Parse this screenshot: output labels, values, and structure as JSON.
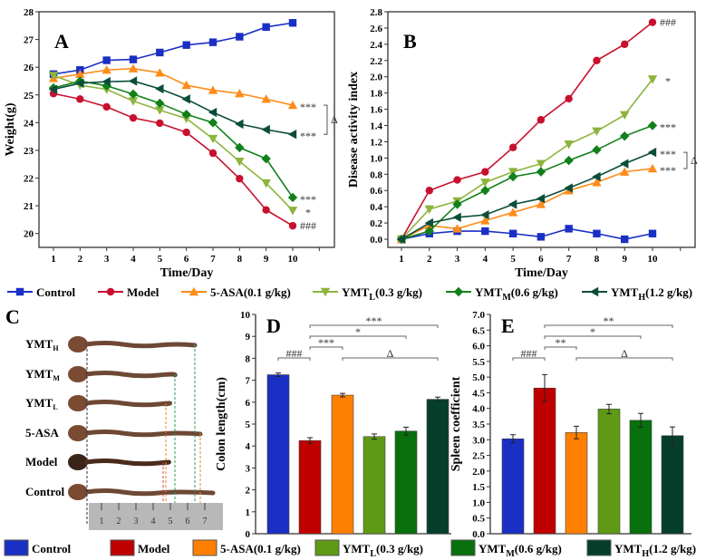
{
  "groups": [
    {
      "main": "Control",
      "sub": "",
      "rest": "",
      "color": "#1a2fc4",
      "line": "#1a2fc4",
      "marker": "square"
    },
    {
      "main": "Model",
      "sub": "",
      "rest": "",
      "color": "#c00000",
      "line": "#c8102e",
      "marker": "circle"
    },
    {
      "main": "5-ASA(0.1 g/kg)",
      "sub": "",
      "rest": "",
      "color": "#ff8000",
      "line": "#ff8c1a",
      "marker": "triangle-up"
    },
    {
      "main": "YMT",
      "sub": "L",
      "rest": "(0.3 g/kg)",
      "color": "#5e9a14",
      "line": "#8db43c",
      "marker": "triangle-down"
    },
    {
      "main": "YMT",
      "sub": "M",
      "rest": "(0.6 g/kg)",
      "color": "#08700c",
      "line": "#12801a",
      "marker": "diamond"
    },
    {
      "main": "YMT",
      "sub": "H",
      "rest": "(1.2 g/kg)",
      "color": "#053f2c",
      "line": "#0b4d3a",
      "marker": "triangle-left"
    }
  ],
  "chart_data": [
    {
      "panel": "A",
      "type": "line",
      "xlabel": "Time/Day",
      "ylabel": "Weight(g)",
      "xlim": [
        1,
        11
      ],
      "ylim": [
        19.5,
        28
      ],
      "xticks": [
        1,
        2,
        3,
        4,
        5,
        6,
        7,
        8,
        9,
        10
      ],
      "yticks": [
        20,
        21,
        22,
        23,
        24,
        25,
        26,
        27,
        28
      ],
      "series": [
        {
          "name": "Control",
          "values": [
            25.75,
            25.9,
            26.25,
            26.28,
            26.53,
            26.8,
            26.9,
            27.1,
            27.45,
            27.6
          ]
        },
        {
          "name": "Model",
          "values": [
            25.05,
            24.85,
            24.57,
            24.17,
            23.98,
            23.65,
            22.9,
            21.98,
            20.85,
            20.28
          ]
        },
        {
          "name": "5-ASA(0.1 g/kg)",
          "values": [
            25.6,
            25.75,
            25.9,
            25.95,
            25.8,
            25.35,
            25.17,
            25.05,
            24.85,
            24.63
          ]
        },
        {
          "name": "YMTL(0.3 g/kg)",
          "values": [
            25.7,
            25.35,
            25.2,
            24.78,
            24.45,
            24.15,
            23.42,
            22.6,
            21.82,
            20.83
          ]
        },
        {
          "name": "YMTM(0.6 g/kg)",
          "values": [
            25.25,
            25.5,
            25.33,
            25.03,
            24.7,
            24.3,
            24.0,
            23.1,
            22.7,
            21.3
          ]
        },
        {
          "name": "YMTH(1.2 g/kg)",
          "values": [
            25.2,
            25.42,
            25.48,
            25.5,
            25.22,
            24.85,
            24.37,
            23.95,
            23.75,
            23.58
          ]
        }
      ],
      "annotations": [
        {
          "series": 0,
          "text": ""
        },
        {
          "series": 1,
          "text": "###"
        },
        {
          "series": 2,
          "text": "***"
        },
        {
          "series": 3,
          "text": "*"
        },
        {
          "series": 4,
          "text": "***"
        },
        {
          "series": 5,
          "text": "***"
        }
      ],
      "bracket": {
        "between": [
          2,
          5
        ],
        "text": "Δ"
      }
    },
    {
      "panel": "B",
      "type": "line",
      "xlabel": "Time/Day",
      "ylabel": "Disease activity index",
      "xlim": [
        1,
        11
      ],
      "ylim": [
        -0.1,
        2.8
      ],
      "xticks": [
        1,
        2,
        3,
        4,
        5,
        6,
        7,
        8,
        9,
        10
      ],
      "yticks": [
        0.0,
        0.2,
        0.4,
        0.6,
        0.8,
        1.0,
        1.2,
        1.4,
        1.6,
        1.8,
        2.0,
        2.2,
        2.4,
        2.6,
        2.8
      ],
      "series": [
        {
          "name": "Control",
          "values": [
            0,
            0.07,
            0.1,
            0.1,
            0.07,
            0.03,
            0.13,
            0.07,
            0,
            0.07
          ]
        },
        {
          "name": "Model",
          "values": [
            0,
            0.6,
            0.73,
            0.83,
            1.13,
            1.47,
            1.73,
            2.2,
            2.4,
            2.67
          ]
        },
        {
          "name": "5-ASA(0.1 g/kg)",
          "values": [
            0,
            0.17,
            0.13,
            0.23,
            0.33,
            0.43,
            0.6,
            0.7,
            0.83,
            0.87
          ]
        },
        {
          "name": "YMTL(0.3 g/kg)",
          "values": [
            0,
            0.37,
            0.47,
            0.7,
            0.83,
            0.93,
            1.17,
            1.33,
            1.53,
            1.97
          ]
        },
        {
          "name": "YMTM(0.6 g/kg)",
          "values": [
            0,
            0.1,
            0.43,
            0.6,
            0.77,
            0.83,
            0.97,
            1.1,
            1.27,
            1.4
          ]
        },
        {
          "name": "YMTH(1.2 g/kg)",
          "values": [
            0,
            0.2,
            0.27,
            0.3,
            0.43,
            0.5,
            0.63,
            0.77,
            0.93,
            1.07
          ]
        }
      ],
      "annotations": [
        {
          "series": 0,
          "text": ""
        },
        {
          "series": 1,
          "text": "###"
        },
        {
          "series": 2,
          "text": "***"
        },
        {
          "series": 3,
          "text": "*"
        },
        {
          "series": 4,
          "text": "***"
        },
        {
          "series": 5,
          "text": "***"
        }
      ],
      "bracket": {
        "between": [
          5,
          2
        ],
        "text": "Δ"
      }
    },
    {
      "panel": "D",
      "type": "bar",
      "ylabel": "Colon length(cm)",
      "ylim": [
        0,
        10
      ],
      "yticks": [
        0,
        1,
        2,
        3,
        4,
        5,
        6,
        7,
        8,
        9,
        10
      ],
      "values": [
        7.25,
        4.25,
        6.32,
        4.43,
        4.68,
        6.13
      ],
      "errors": [
        0.08,
        0.13,
        0.08,
        0.12,
        0.18,
        0.1
      ],
      "comparisons": [
        {
          "from": 0,
          "to": 1,
          "text": "###"
        },
        {
          "from": 1,
          "to": 2,
          "text": "***"
        },
        {
          "from": 1,
          "to": 4,
          "text": "*"
        },
        {
          "from": 1,
          "to": 5,
          "text": "***"
        },
        {
          "from": 2,
          "to": 5,
          "text": "Δ"
        }
      ]
    },
    {
      "panel": "E",
      "type": "bar",
      "ylabel": "Spleen coefficient",
      "ylim": [
        0,
        7
      ],
      "yticks": [
        0.0,
        0.5,
        1.0,
        1.5,
        2.0,
        2.5,
        3.0,
        3.5,
        4.0,
        4.5,
        5.0,
        5.5,
        6.0,
        6.5,
        7.0
      ],
      "values": [
        3.03,
        4.65,
        3.23,
        3.98,
        3.62,
        3.13
      ],
      "errors": [
        0.13,
        0.43,
        0.2,
        0.15,
        0.22,
        0.28
      ],
      "comparisons": [
        {
          "from": 0,
          "to": 1,
          "text": "###"
        },
        {
          "from": 1,
          "to": 2,
          "text": "**"
        },
        {
          "from": 1,
          "to": 4,
          "text": "*"
        },
        {
          "from": 1,
          "to": 5,
          "text": "**"
        },
        {
          "from": 2,
          "to": 5,
          "text": "Δ"
        }
      ]
    }
  ],
  "panel_c": {
    "panel": "C",
    "labels": [
      {
        "main": "YMT",
        "sub": "H"
      },
      {
        "main": "YMT",
        "sub": "M"
      },
      {
        "main": "YMT",
        "sub": "L"
      },
      {
        "main": "5-ASA",
        "sub": ""
      },
      {
        "main": "Model",
        "sub": ""
      },
      {
        "main": "Control",
        "sub": ""
      }
    ],
    "ruler_ticks": [
      "1",
      "2",
      "3",
      "4",
      "5",
      "6",
      "7"
    ]
  }
}
